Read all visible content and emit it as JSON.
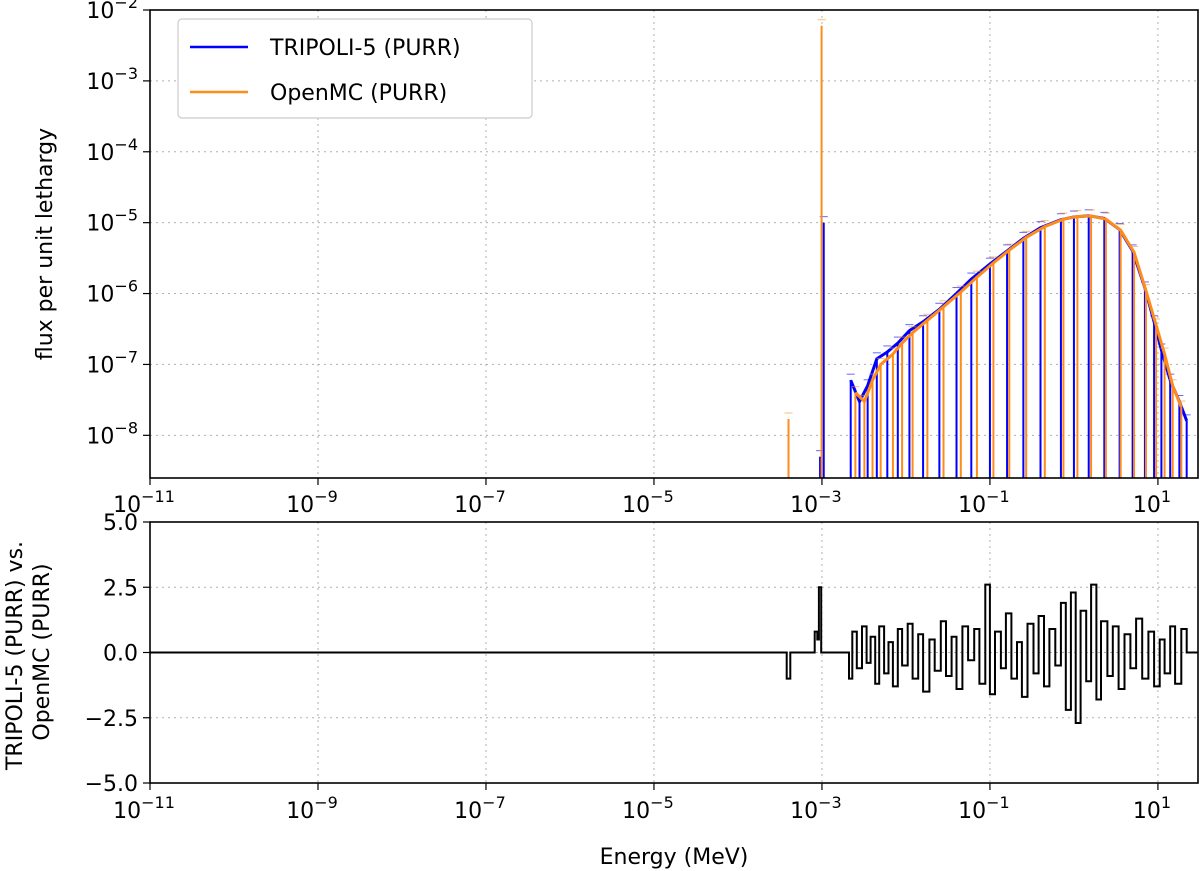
{
  "chart_data": [
    {
      "type": "line",
      "xscale": "log",
      "yscale": "log",
      "xlim": [
        1e-11,
        30
      ],
      "ylim": [
        2.5e-09,
        0.01
      ],
      "xticks": [
        {
          "base": "10",
          "exp": "−11"
        },
        {
          "base": "10",
          "exp": "−9"
        },
        {
          "base": "10",
          "exp": "−7"
        },
        {
          "base": "10",
          "exp": "−5"
        },
        {
          "base": "10",
          "exp": "−3"
        },
        {
          "base": "10",
          "exp": "−1"
        },
        {
          "base": "10",
          "exp": "1"
        }
      ],
      "yticks": [
        {
          "base": "10",
          "exp": "−8"
        },
        {
          "base": "10",
          "exp": "−7"
        },
        {
          "base": "10",
          "exp": "−6"
        },
        {
          "base": "10",
          "exp": "−5"
        },
        {
          "base": "10",
          "exp": "−4"
        },
        {
          "base": "10",
          "exp": "−3"
        },
        {
          "base": "10",
          "exp": "−2"
        }
      ],
      "ylabel": "flux per unit lethargy",
      "xlabel": "",
      "grid": true,
      "legend_position": "top-left",
      "series": [
        {
          "name": "TRIPOLI-5 (PURR)",
          "color": "#0000ff",
          "points": [
            [
              0.00095,
              5e-09
            ],
            [
              0.00105,
              1e-05
            ],
            [
              0.0022,
              6e-08
            ],
            [
              0.0028,
              3e-08
            ],
            [
              0.0035,
              5e-08
            ],
            [
              0.0045,
              1.2e-07
            ],
            [
              0.006,
              1.5e-07
            ],
            [
              0.008,
              2e-07
            ],
            [
              0.011,
              3e-07
            ],
            [
              0.016,
              4e-07
            ],
            [
              0.025,
              6e-07
            ],
            [
              0.04,
              1e-06
            ],
            [
              0.06,
              1.6e-06
            ],
            [
              0.1,
              2.6e-06
            ],
            [
              0.16,
              4e-06
            ],
            [
              0.25,
              6e-06
            ],
            [
              0.4,
              8.5e-06
            ],
            [
              0.7,
              1.1e-05
            ],
            [
              1.0,
              1.2e-05
            ],
            [
              1.5,
              1.25e-05
            ],
            [
              2.3,
              1.15e-05
            ],
            [
              3.5,
              8e-06
            ],
            [
              5,
              4e-06
            ],
            [
              7,
              1.2e-06
            ],
            [
              9,
              4e-07
            ],
            [
              11,
              1.6e-07
            ],
            [
              14,
              6e-08
            ],
            [
              18,
              3e-08
            ],
            [
              22,
              1.6e-08
            ]
          ]
        },
        {
          "name": "OpenMC (PURR)",
          "color": "#ff8c1a",
          "points": [
            [
              0.0004,
              1.7e-08
            ],
            [
              0.00099,
              0.006
            ],
            [
              0.0025,
              4e-08
            ],
            [
              0.0032,
              3e-08
            ],
            [
              0.004,
              6e-08
            ],
            [
              0.005,
              1e-07
            ],
            [
              0.007,
              1.4e-07
            ],
            [
              0.009,
              2e-07
            ],
            [
              0.012,
              2.8e-07
            ],
            [
              0.018,
              4.2e-07
            ],
            [
              0.028,
              6.5e-07
            ],
            [
              0.045,
              1.05e-06
            ],
            [
              0.07,
              1.7e-06
            ],
            [
              0.11,
              2.7e-06
            ],
            [
              0.17,
              4.1e-06
            ],
            [
              0.27,
              6.2e-06
            ],
            [
              0.45,
              8.8e-06
            ],
            [
              0.75,
              1.12e-05
            ],
            [
              1.1,
              1.22e-05
            ],
            [
              1.6,
              1.24e-05
            ],
            [
              2.4,
              1.12e-05
            ],
            [
              3.6,
              7.8e-06
            ],
            [
              5.2,
              3.8e-06
            ],
            [
              7.2,
              1.1e-06
            ],
            [
              9.5,
              3.6e-07
            ],
            [
              12,
              1.4e-07
            ],
            [
              15,
              5e-08
            ],
            [
              19,
              2.5e-08
            ]
          ]
        }
      ]
    },
    {
      "type": "line",
      "xscale": "log",
      "xlim": [
        1e-11,
        30
      ],
      "ylim": [
        -5,
        5
      ],
      "xticks": [
        {
          "base": "10",
          "exp": "−11"
        },
        {
          "base": "10",
          "exp": "−9"
        },
        {
          "base": "10",
          "exp": "−7"
        },
        {
          "base": "10",
          "exp": "−5"
        },
        {
          "base": "10",
          "exp": "−3"
        },
        {
          "base": "10",
          "exp": "−1"
        },
        {
          "base": "10",
          "exp": "1"
        }
      ],
      "yticks": [
        "−5.0",
        "−2.5",
        "0.0",
        "2.5",
        "5.0"
      ],
      "ylabel_lines": [
        "TRIPOLI-5 (PURR) vs.",
        "OpenMC (PURR)"
      ],
      "xlabel": "Energy (MeV)",
      "grid": true,
      "series": [
        {
          "color": "#000000",
          "points": [
            [
              1e-11,
              0
            ],
            [
              0.00038,
              0
            ],
            [
              0.00038,
              -1.0
            ],
            [
              0.00042,
              -1.0
            ],
            [
              0.00042,
              0
            ],
            [
              0.00082,
              0
            ],
            [
              0.00082,
              0.8
            ],
            [
              0.00088,
              0.8
            ],
            [
              0.00088,
              0.5
            ],
            [
              0.00092,
              0.5
            ],
            [
              0.00092,
              2.5
            ],
            [
              0.00098,
              2.5
            ],
            [
              0.00098,
              0
            ],
            [
              0.0021,
              0
            ],
            [
              0.0021,
              -1.0
            ],
            [
              0.0023,
              -1.0
            ],
            [
              0.0023,
              0.8
            ],
            [
              0.0026,
              0.8
            ],
            [
              0.0026,
              -0.6
            ],
            [
              0.003,
              -0.6
            ],
            [
              0.003,
              1.0
            ],
            [
              0.0034,
              1.0
            ],
            [
              0.0034,
              -0.4
            ],
            [
              0.0038,
              -0.4
            ],
            [
              0.0038,
              0.6
            ],
            [
              0.0043,
              0.6
            ],
            [
              0.0043,
              -1.2
            ],
            [
              0.0048,
              -1.2
            ],
            [
              0.0048,
              1.0
            ],
            [
              0.0055,
              1.0
            ],
            [
              0.0055,
              -0.8
            ],
            [
              0.0062,
              -0.8
            ],
            [
              0.0062,
              0.4
            ],
            [
              0.007,
              0.4
            ],
            [
              0.007,
              -1.3
            ],
            [
              0.008,
              -1.3
            ],
            [
              0.008,
              0.9
            ],
            [
              0.009,
              0.9
            ],
            [
              0.009,
              -0.5
            ],
            [
              0.0105,
              -0.5
            ],
            [
              0.0105,
              1.1
            ],
            [
              0.012,
              1.1
            ],
            [
              0.012,
              -1.0
            ],
            [
              0.014,
              -1.0
            ],
            [
              0.014,
              0.7
            ],
            [
              0.016,
              0.7
            ],
            [
              0.016,
              -1.5
            ],
            [
              0.019,
              -1.5
            ],
            [
              0.019,
              0.5
            ],
            [
              0.022,
              0.5
            ],
            [
              0.022,
              -0.7
            ],
            [
              0.026,
              -0.7
            ],
            [
              0.026,
              1.2
            ],
            [
              0.03,
              1.2
            ],
            [
              0.03,
              -0.9
            ],
            [
              0.035,
              -0.9
            ],
            [
              0.035,
              0.6
            ],
            [
              0.04,
              0.6
            ],
            [
              0.04,
              -1.4
            ],
            [
              0.047,
              -1.4
            ],
            [
              0.047,
              1.0
            ],
            [
              0.055,
              1.0
            ],
            [
              0.055,
              -0.3
            ],
            [
              0.065,
              -0.3
            ],
            [
              0.065,
              0.9
            ],
            [
              0.075,
              0.9
            ],
            [
              0.075,
              -1.2
            ],
            [
              0.088,
              -1.2
            ],
            [
              0.088,
              2.6
            ],
            [
              0.1,
              2.6
            ],
            [
              0.1,
              -1.6
            ],
            [
              0.115,
              -1.6
            ],
            [
              0.115,
              0.8
            ],
            [
              0.135,
              0.8
            ],
            [
              0.135,
              -0.6
            ],
            [
              0.155,
              -0.6
            ],
            [
              0.155,
              1.5
            ],
            [
              0.18,
              1.5
            ],
            [
              0.18,
              -1.0
            ],
            [
              0.21,
              -1.0
            ],
            [
              0.21,
              0.4
            ],
            [
              0.24,
              0.4
            ],
            [
              0.24,
              -1.7
            ],
            [
              0.28,
              -1.7
            ],
            [
              0.28,
              1.1
            ],
            [
              0.33,
              1.1
            ],
            [
              0.33,
              -0.8
            ],
            [
              0.38,
              -0.8
            ],
            [
              0.38,
              1.4
            ],
            [
              0.44,
              1.4
            ],
            [
              0.44,
              -1.3
            ],
            [
              0.51,
              -1.3
            ],
            [
              0.51,
              0.9
            ],
            [
              0.6,
              0.9
            ],
            [
              0.6,
              -0.5
            ],
            [
              0.7,
              -0.5
            ],
            [
              0.7,
              1.9
            ],
            [
              0.8,
              1.9
            ],
            [
              0.8,
              -2.2
            ],
            [
              0.92,
              -2.2
            ],
            [
              0.92,
              2.3
            ],
            [
              1.05,
              2.3
            ],
            [
              1.05,
              -2.7
            ],
            [
              1.2,
              -2.7
            ],
            [
              1.2,
              1.6
            ],
            [
              1.4,
              1.6
            ],
            [
              1.4,
              -1.1
            ],
            [
              1.6,
              -1.1
            ],
            [
              1.6,
              2.6
            ],
            [
              1.85,
              2.6
            ],
            [
              1.85,
              -1.8
            ],
            [
              2.1,
              -1.8
            ],
            [
              2.1,
              1.2
            ],
            [
              2.5,
              1.2
            ],
            [
              2.5,
              -0.9
            ],
            [
              2.9,
              -0.9
            ],
            [
              2.9,
              1.0
            ],
            [
              3.4,
              1.0
            ],
            [
              3.4,
              -1.4
            ],
            [
              4,
              -1.4
            ],
            [
              4,
              0.7
            ],
            [
              4.7,
              0.7
            ],
            [
              4.7,
              -0.6
            ],
            [
              5.5,
              -0.6
            ],
            [
              5.5,
              1.3
            ],
            [
              6.5,
              1.3
            ],
            [
              6.5,
              -1.0
            ],
            [
              7.7,
              -1.0
            ],
            [
              7.7,
              0.8
            ],
            [
              9,
              0.8
            ],
            [
              9,
              -1.3
            ],
            [
              10.5,
              -1.3
            ],
            [
              10.5,
              0.5
            ],
            [
              12,
              0.5
            ],
            [
              12,
              -0.8
            ],
            [
              14,
              -0.8
            ],
            [
              14,
              1.0
            ],
            [
              16,
              1.0
            ],
            [
              16,
              -1.2
            ],
            [
              19,
              -1.2
            ],
            [
              19,
              0.9
            ],
            [
              22,
              0.9
            ],
            [
              22,
              0
            ],
            [
              30,
              0
            ]
          ]
        }
      ]
    }
  ]
}
